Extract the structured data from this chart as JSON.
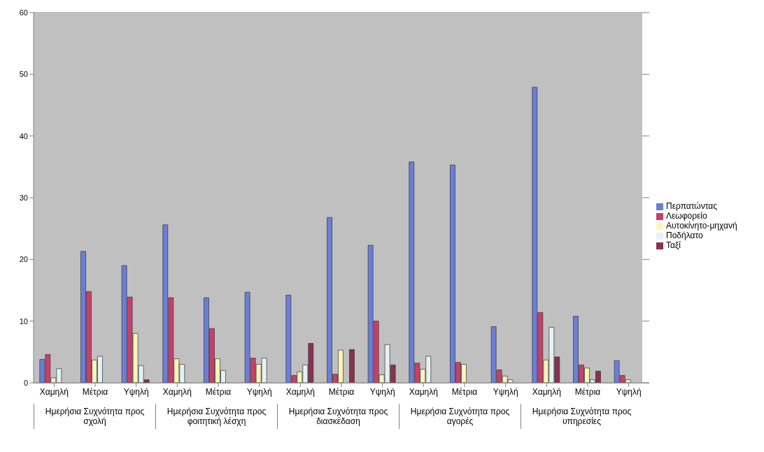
{
  "chart_data": {
    "type": "bar",
    "categories": [
      "Χαμηλή",
      "Μέτρια",
      "Υψηλή",
      "Χαμηλή",
      "Μέτρια",
      "Υψηλή",
      "Χαμηλή",
      "Μέτρια",
      "Υψηλή",
      "Χαμηλή",
      "Μέτρια",
      "Υψηλή",
      "Χαμηλή",
      "Μέτρια",
      "Υψηλή"
    ],
    "annotations": [
      "Ημερήσια Συχνότητα προς σχολή",
      "Ημερήσια Συχνότητα προς φοιτητική λέσχη",
      "Ημερήσια Συχνότητα προς διασκέδαση",
      "Ημερήσια Συχνότητα προς αγορές",
      "Ημερήσια Συχνότητα προς υπηρεσίες"
    ],
    "series": [
      {
        "name": "Περπατώντας",
        "color": "#6b7fd8",
        "values": [
          3.8,
          21.3,
          19.0,
          25.6,
          13.8,
          14.7,
          14.2,
          26.8,
          22.3,
          35.8,
          35.3,
          9.1,
          47.9,
          10.8,
          3.6
        ]
      },
      {
        "name": "Λεωφορείο",
        "color": "#c8406a",
        "values": [
          4.6,
          14.8,
          13.9,
          13.8,
          8.8,
          4.0,
          1.2,
          1.4,
          10.0,
          3.2,
          3.3,
          2.1,
          11.4,
          2.9,
          1.2
        ]
      },
      {
        "name": "Αυτοκίνητο-μηχανή",
        "color": "#fff4b8",
        "values": [
          0.8,
          3.7,
          8.0,
          3.9,
          3.9,
          3.0,
          1.8,
          5.3,
          1.3,
          2.2,
          3.0,
          1.1,
          3.7,
          2.4,
          0.5
        ]
      },
      {
        "name": "Ποδήλατο",
        "color": "#e4f2f6",
        "values": [
          2.3,
          4.3,
          2.8,
          3.0,
          2.0,
          4.0,
          2.9,
          0,
          6.2,
          4.3,
          0,
          0.5,
          9.0,
          0.5,
          0
        ]
      },
      {
        "name": "Ταξί",
        "color": "#8a3050",
        "values": [
          0,
          0,
          0.5,
          0,
          0,
          0,
          6.4,
          5.4,
          2.9,
          0,
          0,
          0,
          4.2,
          1.9,
          0
        ]
      }
    ],
    "ylim": [
      0,
      60
    ],
    "yticks": [
      0,
      10,
      20,
      30,
      40,
      50,
      60
    ],
    "grid": "y",
    "legend": "right"
  }
}
